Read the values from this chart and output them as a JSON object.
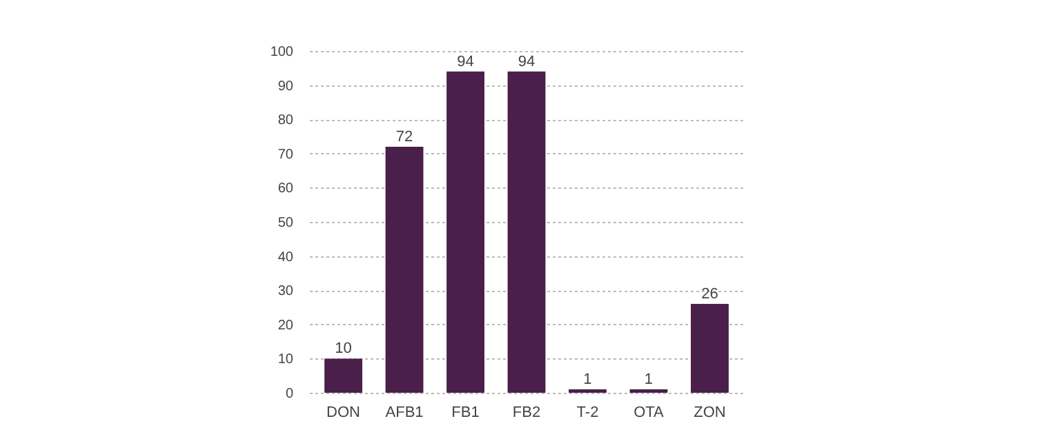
{
  "chart_data": {
    "type": "bar",
    "categories": [
      "DON",
      "AFB1",
      "FB1",
      "FB2",
      "T-2",
      "OTA",
      "ZON"
    ],
    "values": [
      10,
      72,
      94,
      94,
      1,
      1,
      26
    ],
    "color": "#4a1f4a",
    "ylim": [
      0,
      100
    ],
    "yticks": [
      0,
      10,
      20,
      30,
      40,
      50,
      60,
      70,
      80,
      90,
      100
    ],
    "grid": "y",
    "data_labels": true
  }
}
